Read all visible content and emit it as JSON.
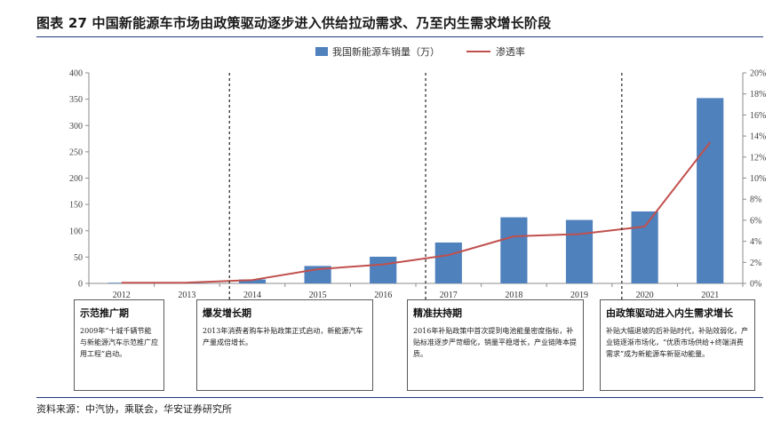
{
  "title": "图表 27 中国新能源车市场由政策驱动逐步进入供给拉动需求、乃至内生需求增长阶段",
  "source": "资料来源：中汽协，乘联会，华安证券研究所",
  "chart_data": {
    "type": "bar",
    "categories": [
      "2012",
      "2013",
      "2014",
      "2015",
      "2016",
      "2017",
      "2018",
      "2019",
      "2020",
      "2021"
    ],
    "series": [
      {
        "name": "我国新能源车销量（万）",
        "type": "bar",
        "axis": "left",
        "color": "#4f81bd",
        "values": [
          1.3,
          1.8,
          7.5,
          33.1,
          50.7,
          77.7,
          125.6,
          120.6,
          136.7,
          352.1
        ]
      },
      {
        "name": "渗透率",
        "type": "line",
        "axis": "right",
        "color": "#c0504d",
        "values": [
          0.06,
          0.08,
          0.32,
          1.35,
          1.81,
          2.69,
          4.47,
          4.68,
          5.4,
          13.4
        ]
      }
    ],
    "y_left": {
      "min": 0,
      "max": 400,
      "ticks": [
        "0",
        "50",
        "100",
        "150",
        "200",
        "250",
        "300",
        "350",
        "400"
      ]
    },
    "y_right": {
      "min": 0,
      "max": 20,
      "ticks": [
        "0%",
        "2%",
        "4%",
        "6%",
        "8%",
        "10%",
        "12%",
        "14%",
        "16%",
        "18%",
        "20%"
      ]
    },
    "legend_position": "top-center",
    "grid": false,
    "stage_dividers_after": [
      "2013",
      "2016",
      "2019"
    ]
  },
  "stages": [
    {
      "title": "示范推广期",
      "desc": "2009年“十城千辆节能与新能源汽车示范推广应用工程”启动。"
    },
    {
      "title": "爆发增长期",
      "desc": "2013年消费者购车补贴政策正式启动，新能源汽车产量成倍增长。"
    },
    {
      "title": "精准扶持期",
      "desc": "2016年补贴政策中首次提到电池能量密度指标，补贴标准逐步严苛细化，销量平稳增长，产业链降本提质。"
    },
    {
      "title": "由政策驱动进入内生需求增长",
      "desc": "补贴大幅退坡的后补贴时代，补贴效弱化，产业链逐渐市场化，“优质市场供给+终端消费需求”成为新能源车新驱动能量。"
    }
  ]
}
